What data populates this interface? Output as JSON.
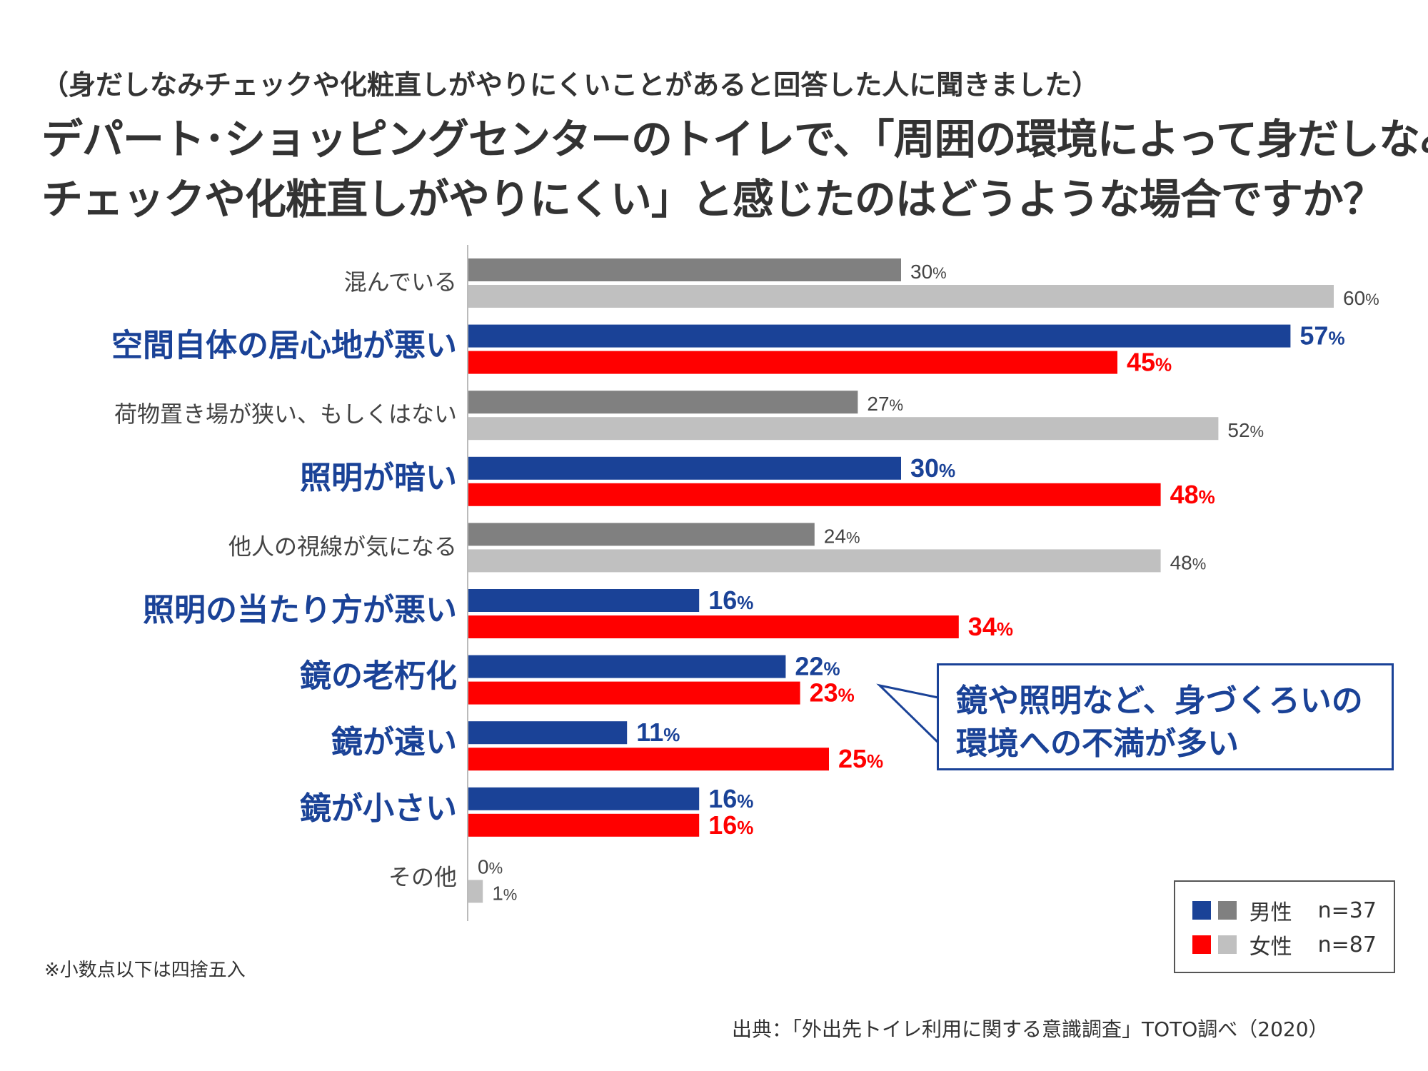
{
  "colors": {
    "male_highlight": "#1a4297",
    "female_highlight": "#ff0000",
    "male_normal": "#808080",
    "female_normal": "#c0c0c0",
    "highlight_label": "#1a4297",
    "normal_label": "#444444"
  },
  "subtitle": "（身だしなみチェックや化粧直しがやりにくいことがあると回答した人に聞きました）",
  "title_lines": [
    "デパート･ショッピングセンターのトイレで、「周囲の環境によって身だしなみ",
    "チェックや化粧直しがやりにくい」と感じたのはどうような場合ですか？"
  ],
  "chart_data": {
    "type": "bar",
    "orientation": "horizontal",
    "categories": [
      "混んでいる",
      "空間自体の居心地が悪い",
      "荷物置き場が狭い、もしくはない",
      "照明が暗い",
      "他人の視線が気になる",
      "照明の当たり方が悪い",
      "鏡の老朽化",
      "鏡が遠い",
      "鏡が小さい",
      "その他"
    ],
    "highlighted": [
      false,
      true,
      false,
      true,
      false,
      true,
      true,
      true,
      true,
      false
    ],
    "series": [
      {
        "name": "男性",
        "values": [
          30,
          57,
          27,
          30,
          24,
          16,
          22,
          11,
          16,
          0
        ]
      },
      {
        "name": "女性",
        "values": [
          60,
          45,
          52,
          48,
          48,
          34,
          23,
          25,
          16,
          1
        ]
      }
    ],
    "value_suffix": "%",
    "xlim": [
      0,
      60
    ],
    "grid": false,
    "legend_position": "bottom-right"
  },
  "callout": {
    "lines": [
      "鏡や照明など、身づくろいの",
      "環境への不満が多い"
    ]
  },
  "legend": {
    "items": [
      {
        "label": "男性",
        "n": "n=37"
      },
      {
        "label": "女性",
        "n": "n=87"
      }
    ]
  },
  "footnote": "※小数点以下は四捨五入",
  "source": "出典：「外出先トイレ利用に関する意識調査」TOTO調べ（2020）"
}
